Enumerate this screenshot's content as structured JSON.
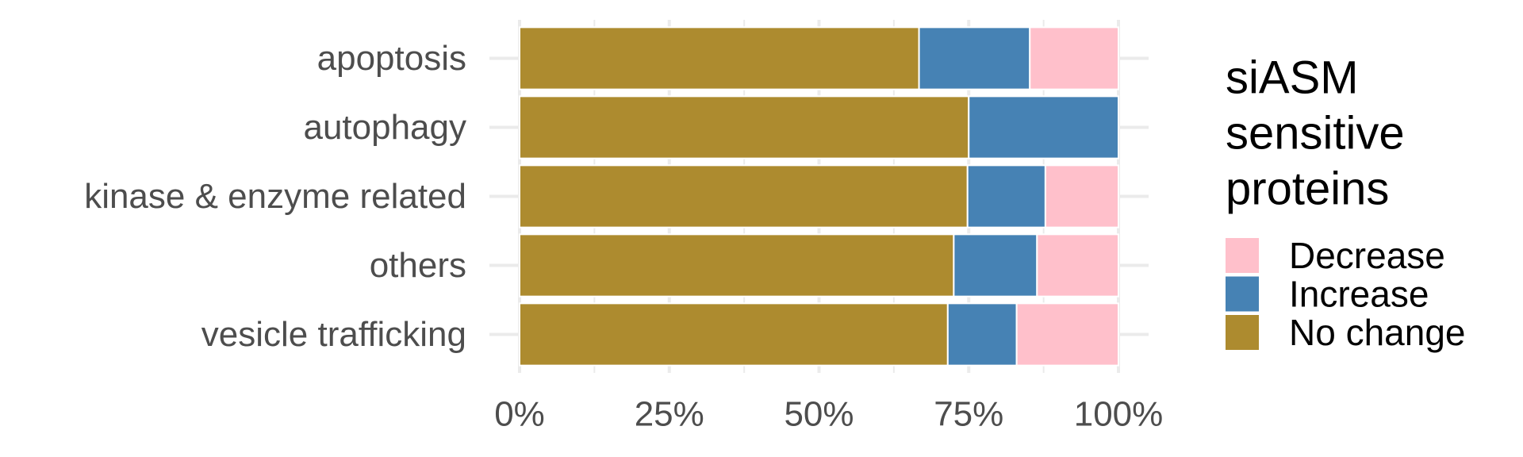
{
  "chart_data": {
    "type": "bar",
    "orientation": "horizontal",
    "stacked": true,
    "normalized": true,
    "categories": [
      "apoptosis",
      "autophagy",
      "kinase & enzyme related",
      "others",
      "vesicle trafficking"
    ],
    "series": [
      {
        "name": "No change",
        "color": "#ad8b2f",
        "values": [
          66.7,
          75.0,
          74.8,
          72.5,
          71.5
        ]
      },
      {
        "name": "Increase",
        "color": "#4682b4",
        "values": [
          18.5,
          25.0,
          13.0,
          13.9,
          11.5
        ]
      },
      {
        "name": "Decrease",
        "color": "#ffc0cb",
        "values": [
          14.8,
          0.0,
          12.2,
          13.6,
          17.0
        ]
      }
    ],
    "x_ticks": [
      "0%",
      "25%",
      "50%",
      "75%",
      "100%"
    ],
    "xlim": [
      0,
      100
    ],
    "xlabel": "",
    "ylabel": "",
    "grid": true,
    "legend": {
      "title_lines": [
        "siASM",
        "sensitive",
        "proteins"
      ],
      "items": [
        "Decrease",
        "Increase",
        "No change"
      ],
      "placement": "right"
    }
  }
}
